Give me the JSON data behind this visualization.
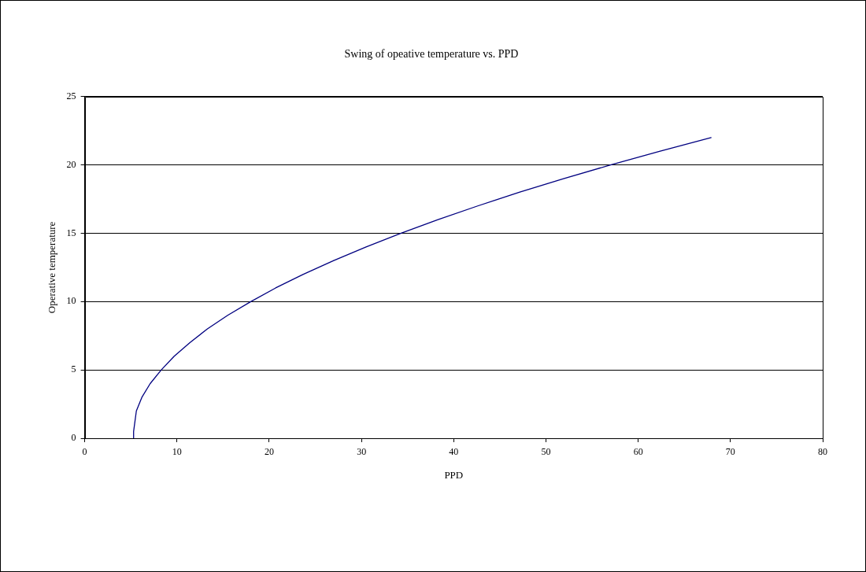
{
  "chart_data": {
    "type": "line",
    "title": "Swing of opeative temperature vs. PPD",
    "xlabel": "PPD",
    "ylabel": "Operative temperature",
    "series": [
      {
        "color": "#000080",
        "x": [
          5.3,
          5.3,
          5.4,
          5.6,
          6.2,
          7.1,
          8.3,
          9.7,
          11.4,
          13.3,
          15.5,
          18.0,
          20.7,
          23.7,
          27.0,
          30.5,
          34.3,
          38.3,
          42.6,
          47.1,
          51.9,
          57.0,
          62.3,
          67.9
        ],
        "values": [
          0,
          0.5,
          1,
          2,
          3,
          4,
          5,
          6,
          7,
          8,
          9,
          10,
          11,
          12,
          13,
          14,
          15,
          16,
          17,
          18,
          19,
          20,
          21,
          22
        ]
      }
    ],
    "xlim": [
      0,
      80
    ],
    "xticks": [
      0,
      10,
      20,
      30,
      40,
      50,
      60,
      70,
      80
    ],
    "ylim": [
      0,
      25
    ],
    "yticks": [
      0,
      5,
      10,
      15,
      20,
      25
    ],
    "grid": "y",
    "legend": false,
    "marker": "none",
    "line_style": "solid"
  }
}
